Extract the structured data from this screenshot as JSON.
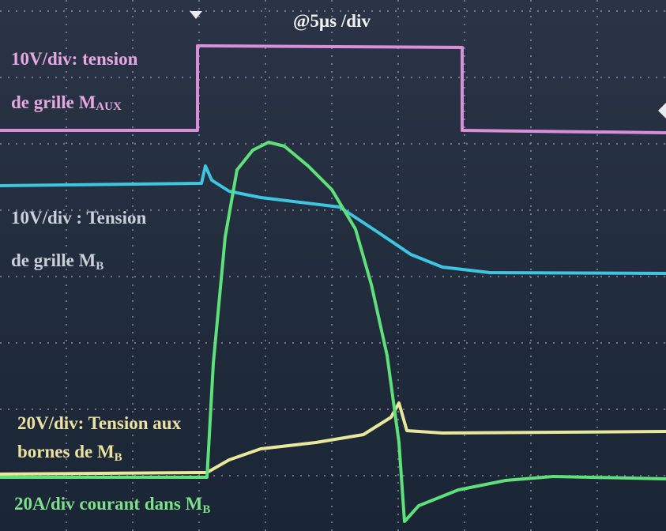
{
  "timebase": "@5µs /div",
  "labels": [
    {
      "lines": [
        "10V/div: tension",
        "de grille M"
      ],
      "sub": "AUX"
    },
    {
      "lines": [
        "10V/div : Tension",
        "de grille M"
      ],
      "sub": "B"
    },
    {
      "lines": [
        "20V/div: Tension aux",
        "bornes de  M"
      ],
      "sub": "B"
    },
    {
      "lines": [
        "20A/div courant dans  M"
      ],
      "sub": "B"
    }
  ]
}
